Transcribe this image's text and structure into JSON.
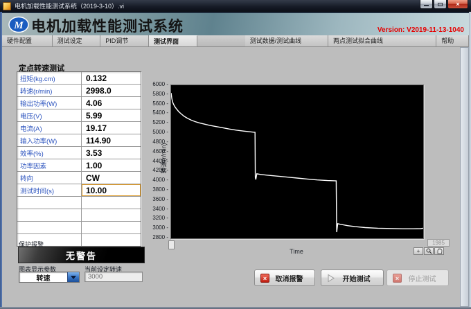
{
  "window": {
    "title": "电机加载性能测试系统（2019-3-10）.vi",
    "close_glyph": "×"
  },
  "header": {
    "app_title": "电机加载性能测试系统",
    "version_label": "Version: V2019-11-13-1040"
  },
  "tabs": [
    {
      "name": "hardware-config",
      "label": "硬件配置",
      "selected": false
    },
    {
      "name": "test-settings",
      "label": "测试设定",
      "selected": false
    },
    {
      "name": "pid-tuning",
      "label": "PID调节",
      "selected": false
    },
    {
      "name": "test-interface",
      "label": "测试界面",
      "selected": true
    },
    {
      "name": "test-data-curves",
      "label": "测试数据/测试曲线",
      "selected": false
    },
    {
      "name": "two-point-fit-curve",
      "label": "两点测试拟合曲线",
      "selected": false
    },
    {
      "name": "help",
      "label": "帮助",
      "selected": false
    }
  ],
  "panel": {
    "section_title": "定点转速测试",
    "rows": [
      {
        "name": "torque",
        "label": "扭矩(kg.cm)",
        "value": "0.132",
        "highlight": false
      },
      {
        "name": "speed",
        "label": "转速(r/min)",
        "value": "2998.0",
        "highlight": false
      },
      {
        "name": "output-power",
        "label": "输出功率(W)",
        "value": "4.06",
        "highlight": false
      },
      {
        "name": "voltage",
        "label": "电压(V)",
        "value": "5.99",
        "highlight": false
      },
      {
        "name": "current",
        "label": "电流(A)",
        "value": "19.17",
        "highlight": false
      },
      {
        "name": "input-power",
        "label": "输入功率(W)",
        "value": "114.90",
        "highlight": false
      },
      {
        "name": "efficiency",
        "label": "效率(%)",
        "value": "3.53",
        "highlight": false
      },
      {
        "name": "power-factor",
        "label": "功率因素",
        "value": "1.00",
        "highlight": false
      },
      {
        "name": "direction",
        "label": "转向",
        "value": "CW",
        "highlight": false
      },
      {
        "name": "test-time",
        "label": "测试时间(s)",
        "value": "10.00",
        "highlight": true
      }
    ],
    "empty_rows": 4,
    "alarm_label": "保护报警",
    "alarm_status": "无警告",
    "chart_param_label": "图表显示参数",
    "chart_param_value": "转速",
    "setpoint_label": "当前设定转速",
    "setpoint_value": "3000"
  },
  "buttons": {
    "cancel_alarm": "取消报警",
    "start_test": "开始测试",
    "stop_test": "停止测试"
  },
  "chart_data": {
    "type": "line",
    "title": "",
    "xlabel": "Time",
    "ylabel": "转速(r/min)",
    "ylim": [
      2800,
      6000
    ],
    "y_tick_step": 200,
    "x_end_label": "1985",
    "background": "#000000",
    "line_color": "#ffffff",
    "grid": false,
    "legend": "none",
    "series": [
      {
        "name": "转速",
        "points": [
          [
            0.0,
            5840
          ],
          [
            0.003,
            5720
          ],
          [
            0.006,
            5650
          ],
          [
            0.01,
            5600
          ],
          [
            0.015,
            5550
          ],
          [
            0.022,
            5500
          ],
          [
            0.03,
            5450
          ],
          [
            0.04,
            5400
          ],
          [
            0.052,
            5350
          ],
          [
            0.065,
            5310
          ],
          [
            0.08,
            5270
          ],
          [
            0.095,
            5240
          ],
          [
            0.11,
            5215
          ],
          [
            0.13,
            5190
          ],
          [
            0.15,
            5165
          ],
          [
            0.175,
            5140
          ],
          [
            0.2,
            5115
          ],
          [
            0.23,
            5085
          ],
          [
            0.26,
            5060
          ],
          [
            0.29,
            5040
          ],
          [
            0.315,
            5025
          ],
          [
            0.333,
            5015
          ],
          [
            0.334,
            4075
          ],
          [
            0.336,
            4030
          ],
          [
            0.34,
            4150
          ],
          [
            0.355,
            4135
          ],
          [
            0.38,
            4120
          ],
          [
            0.42,
            4100
          ],
          [
            0.46,
            4080
          ],
          [
            0.5,
            4060
          ],
          [
            0.54,
            4040
          ],
          [
            0.58,
            4020
          ],
          [
            0.62,
            4008
          ],
          [
            0.655,
            4000
          ],
          [
            0.657,
            2930
          ],
          [
            0.661,
            3105
          ],
          [
            0.675,
            3090
          ],
          [
            0.7,
            3065
          ],
          [
            0.73,
            3045
          ],
          [
            0.77,
            3025
          ],
          [
            0.82,
            3012
          ],
          [
            0.87,
            3005
          ],
          [
            0.92,
            3000
          ],
          [
            0.96,
            3000
          ],
          [
            0.99,
            3002
          ],
          [
            1.0,
            3012
          ]
        ]
      }
    ]
  }
}
